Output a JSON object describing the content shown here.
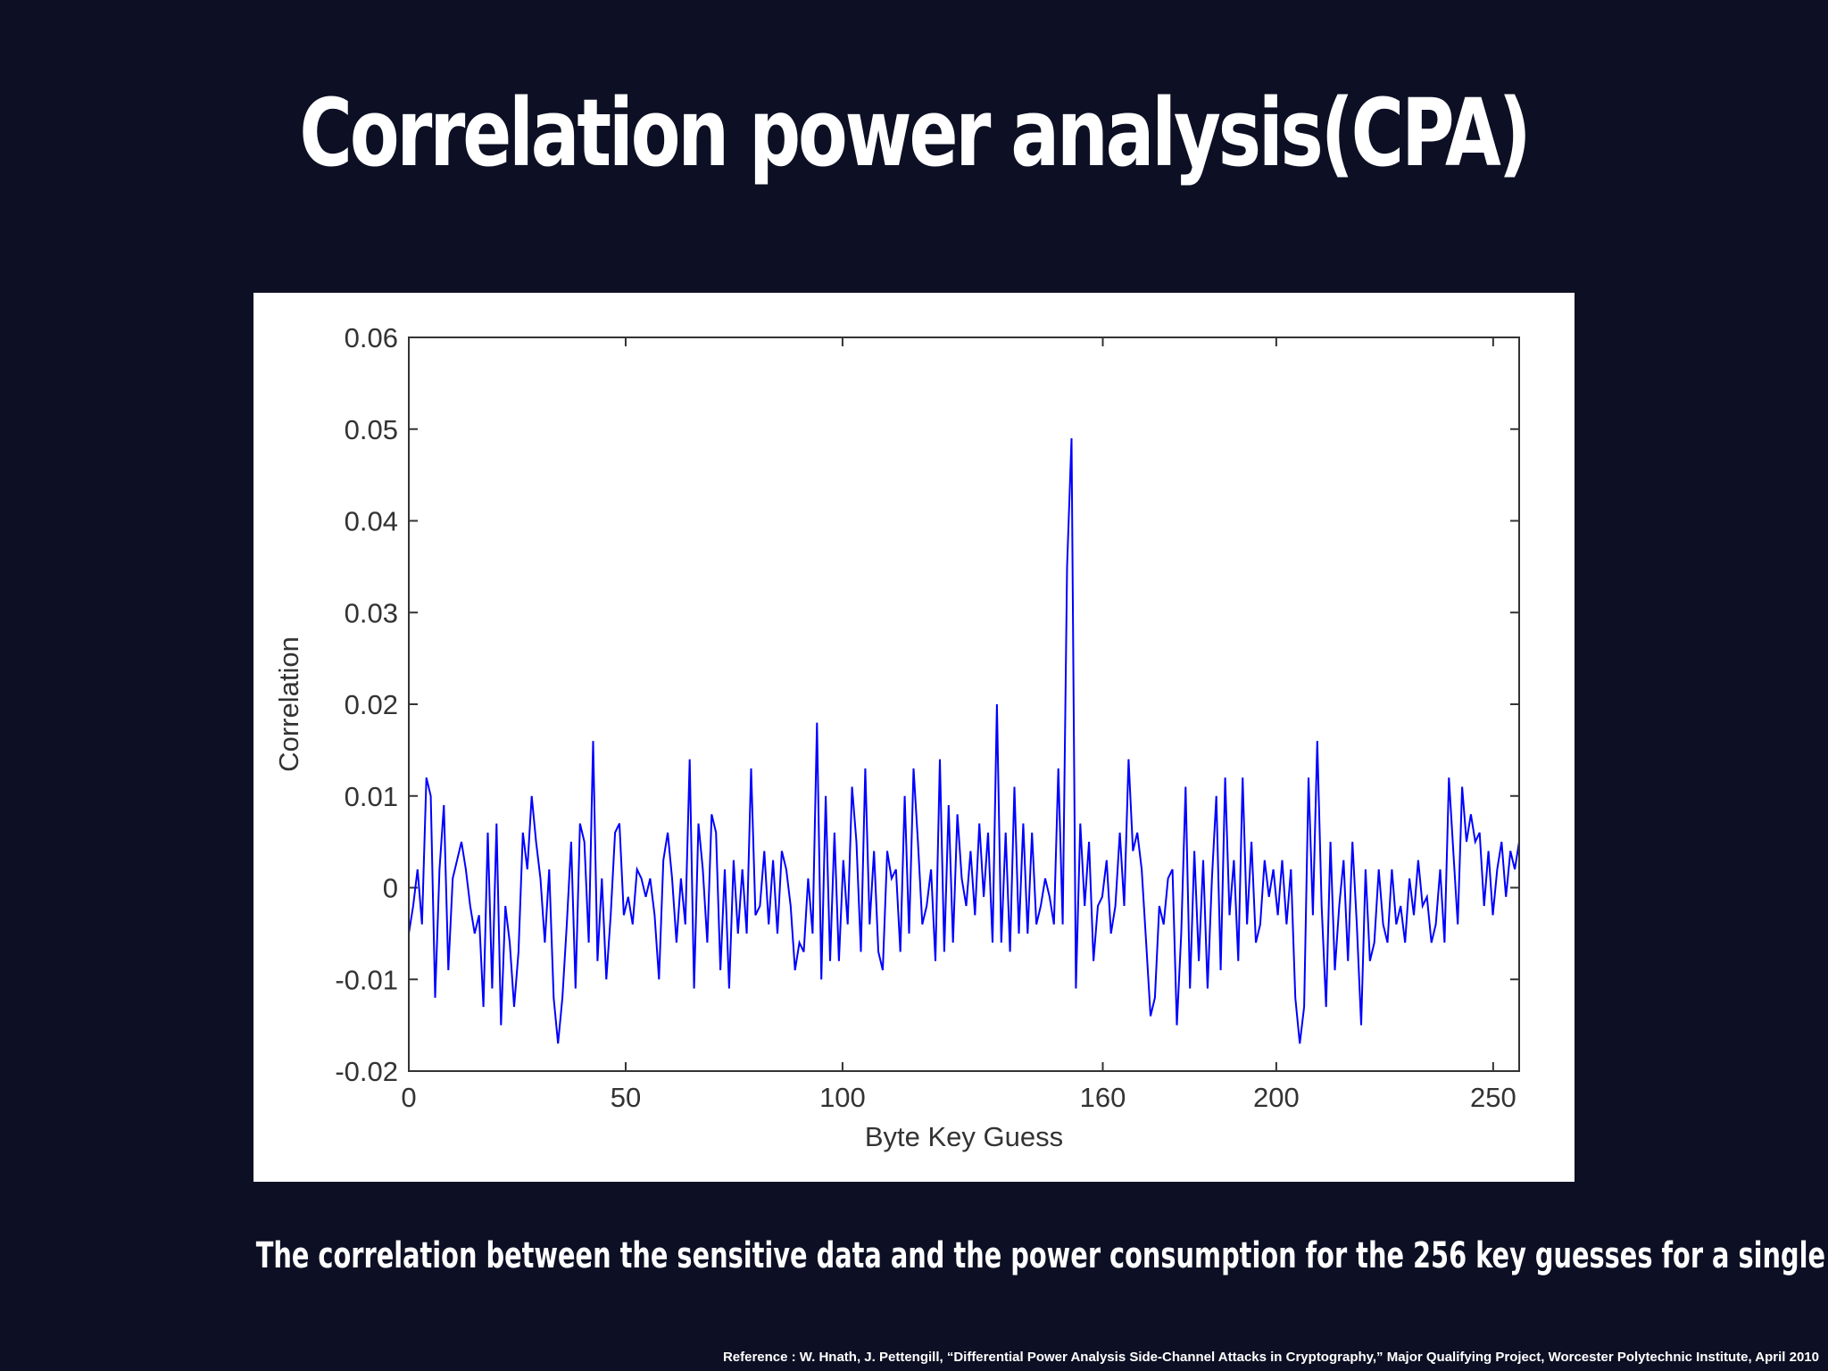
{
  "slide": {
    "title": "Correlation power analysis(CPA)",
    "caption": "The correlation between the sensitive data and the power consumption for the 256 key guesses for a single byte",
    "reference": "Reference : W. Hnath, J. Pettengill, “Differential Power Analysis Side-Channel Attacks in Cryptography,” Major Qualifying Project, Worcester Polytechnic Institute, April 2010"
  },
  "chart_data": {
    "type": "line",
    "title": "",
    "xlabel": "Byte Key Guess",
    "ylabel": "Correlation",
    "xlim": [
      0,
      256
    ],
    "ylim": [
      -0.02,
      0.06
    ],
    "x_ticks": [
      0,
      50,
      100,
      160,
      200,
      250
    ],
    "x_tick_labels": [
      "0",
      "50",
      "100",
      "160",
      "200",
      "250"
    ],
    "y_ticks": [
      -0.02,
      -0.01,
      0,
      0.01,
      0.02,
      0.03,
      0.04,
      0.05,
      0.06
    ],
    "y_tick_labels": [
      "-0.02",
      "-0.01",
      "0",
      "0.01",
      "0.02",
      "0.03",
      "0.04",
      "0.05",
      "0.06"
    ],
    "grid": false,
    "series_color": "#0000ff",
    "series": [
      {
        "values": [
          -0.005,
          -0.002,
          0.002,
          -0.004,
          0.012,
          0.01,
          -0.012,
          0.002,
          0.009,
          -0.009,
          0.001,
          0.003,
          0.005,
          0.002,
          -0.002,
          -0.005,
          -0.003,
          -0.013,
          0.006,
          -0.011,
          0.007,
          -0.015,
          -0.002,
          -0.006,
          -0.013,
          -0.007,
          0.006,
          0.002,
          0.01,
          0.005,
          0.001,
          -0.006,
          0.002,
          -0.012,
          -0.017,
          -0.012,
          -0.004,
          0.005,
          -0.011,
          0.007,
          0.005,
          -0.006,
          0.016,
          -0.008,
          0.001,
          -0.01,
          -0.003,
          0.006,
          0.007,
          -0.003,
          -0.001,
          -0.004,
          0.002,
          0.001,
          -0.001,
          0.001,
          -0.003,
          -0.01,
          0.003,
          0.006,
          0.001,
          -0.006,
          0.001,
          -0.004,
          0.014,
          -0.011,
          0.007,
          0.002,
          -0.006,
          0.008,
          0.006,
          -0.009,
          0.002,
          -0.011,
          0.003,
          -0.005,
          0.002,
          -0.005,
          0.013,
          -0.003,
          -0.002,
          0.004,
          -0.004,
          0.003,
          -0.005,
          0.004,
          0.002,
          -0.002,
          -0.009,
          -0.006,
          -0.007,
          0.001,
          -0.005,
          0.018,
          -0.01,
          0.01,
          -0.008,
          0.006,
          -0.008,
          0.003,
          -0.004,
          0.011,
          0.005,
          -0.007,
          0.013,
          -0.004,
          0.004,
          -0.007,
          -0.009,
          0.004,
          0.001,
          0.002,
          -0.007,
          0.01,
          -0.005,
          0.013,
          0.005,
          -0.004,
          -0.002,
          0.002,
          -0.008,
          0.014,
          -0.007,
          0.009,
          -0.006,
          0.008,
          0.001,
          -0.002,
          0.004,
          -0.003,
          0.007,
          -0.001,
          0.006,
          -0.006,
          0.02,
          -0.006,
          0.006,
          -0.007,
          0.011,
          -0.005,
          0.007,
          -0.005,
          0.006,
          -0.004,
          -0.002,
          0.001,
          -0.001,
          -0.004,
          0.013,
          -0.004,
          0.035,
          0.049,
          -0.011,
          0.007,
          -0.002,
          0.005,
          -0.008,
          -0.002,
          -0.001,
          0.003,
          -0.005,
          -0.002,
          0.006,
          -0.002,
          0.014,
          0.004,
          0.006,
          0.002,
          -0.006,
          -0.014,
          -0.012,
          -0.002,
          -0.004,
          0.001,
          0.002,
          -0.015,
          -0.005,
          0.011,
          -0.011,
          0.004,
          -0.008,
          0.003,
          -0.011,
          0.001,
          0.01,
          -0.009,
          0.012,
          -0.003,
          0.003,
          -0.008,
          0.012,
          -0.004,
          0.005,
          -0.006,
          -0.004,
          0.003,
          -0.001,
          0.002,
          -0.003,
          0.003,
          -0.004,
          0.002,
          -0.012,
          -0.017,
          -0.013,
          0.012,
          -0.003,
          0.016,
          -0.002,
          -0.013,
          0.005,
          -0.009,
          -0.002,
          0.003,
          -0.008,
          0.005,
          -0.004,
          -0.015,
          0.002,
          -0.008,
          -0.006,
          0.002,
          -0.004,
          -0.006,
          0.002,
          -0.004,
          -0.002,
          -0.006,
          0.001,
          -0.003,
          0.003,
          -0.002,
          -0.001,
          -0.006,
          -0.004,
          0.002,
          -0.006,
          0.012,
          0.004,
          -0.004,
          0.011,
          0.005,
          0.008,
          0.005,
          0.006,
          -0.002,
          0.004,
          -0.003,
          0.002,
          0.005,
          -0.001,
          0.004,
          0.002,
          0.005
        ]
      }
    ]
  }
}
